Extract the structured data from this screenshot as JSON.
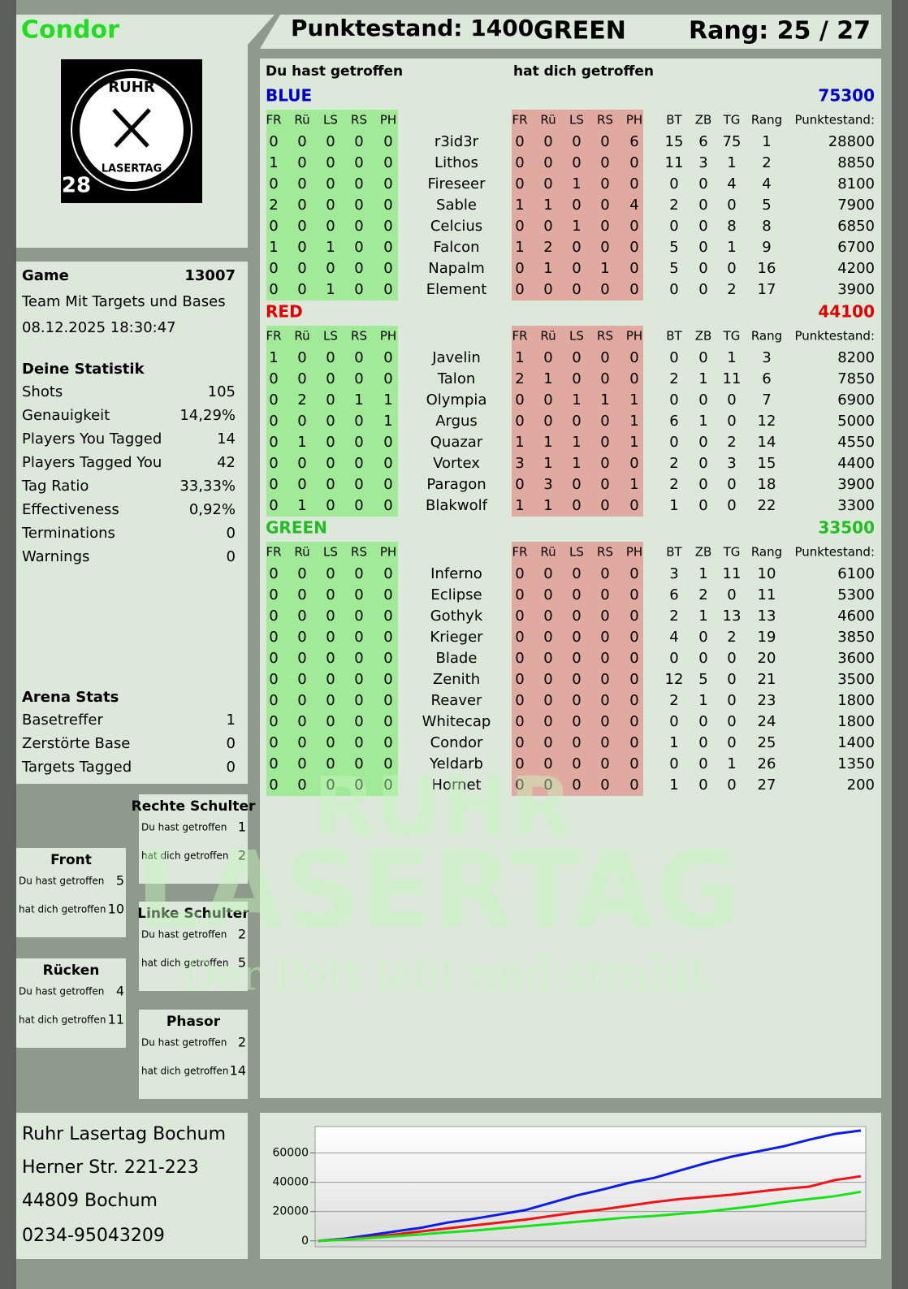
{
  "header": {
    "player": "Condor",
    "score": "Punktestand: 1400",
    "team": "GREEN",
    "rank": "Rang: 25 / 27"
  },
  "logo": {
    "top": "RUHR",
    "bottom": "LASERTAG",
    "number": "28"
  },
  "game": {
    "label": "Game",
    "id": 13007,
    "mode": "Team Mit Targets und Bases",
    "date": "08.12.2025 18:30:47"
  },
  "stats": {
    "title": "Deine Statistik",
    "rows": [
      [
        "Shots",
        105
      ],
      [
        "Genauigkeit",
        "14,29%"
      ],
      [
        "Players You Tagged",
        14
      ],
      [
        "Players Tagged You",
        42
      ],
      [
        "Tag Ratio",
        "33,33%"
      ],
      [
        "Effectiveness",
        "0,92%"
      ],
      [
        "Terminations",
        0
      ],
      [
        "Warnings",
        0
      ]
    ]
  },
  "arena": {
    "title": "Arena Stats",
    "rows": [
      [
        "Basetreffer",
        1
      ],
      [
        "Zerstörte Base",
        0
      ],
      [
        "Targets Tagged",
        0
      ]
    ]
  },
  "zones": [
    {
      "name": "Rechte Schulter",
      "rows": [
        [
          "Du hast getroffen",
          1
        ],
        [
          "hat dich getroffen",
          2
        ]
      ]
    },
    {
      "name": "Front",
      "rows": [
        [
          "Du hast getroffen",
          5
        ],
        [
          "hat dich getroffen",
          10
        ]
      ]
    },
    {
      "name": "Linke Schulter",
      "rows": [
        [
          "Du hast getroffen",
          2
        ],
        [
          "hat dich getroffen",
          5
        ]
      ]
    },
    {
      "name": "Rücken",
      "rows": [
        [
          "Du hast getroffen",
          4
        ],
        [
          "hat dich getroffen",
          11
        ]
      ]
    },
    {
      "name": "Phasor",
      "rows": [
        [
          "Du hast getroffen",
          2
        ],
        [
          "hat dich getroffen",
          14
        ]
      ]
    }
  ],
  "table": {
    "left_header": "Du hast getroffen",
    "right_header": "hat dich getroffen",
    "hit_columns": [
      "FR",
      "Rü",
      "LS",
      "RS",
      "PH"
    ],
    "stat_columns": [
      "BT",
      "ZB",
      "TG",
      "Rang",
      "Punktestand:"
    ],
    "teams": [
      {
        "name": "BLUE",
        "color": "#0000c8",
        "total": 75300,
        "rows": [
          [
            0,
            0,
            0,
            0,
            0,
            "r3id3r",
            0,
            0,
            0,
            0,
            6,
            15,
            6,
            75,
            1,
            28800
          ],
          [
            1,
            0,
            0,
            0,
            0,
            "Lithos",
            0,
            0,
            0,
            0,
            0,
            11,
            3,
            1,
            2,
            8850
          ],
          [
            0,
            0,
            0,
            0,
            0,
            "Fireseer",
            0,
            0,
            1,
            0,
            0,
            0,
            0,
            4,
            4,
            8100
          ],
          [
            2,
            0,
            0,
            0,
            0,
            "Sable",
            1,
            1,
            0,
            0,
            4,
            2,
            0,
            0,
            5,
            7900
          ],
          [
            0,
            0,
            0,
            0,
            0,
            "Celcius",
            0,
            0,
            1,
            0,
            0,
            0,
            0,
            8,
            8,
            6850
          ],
          [
            1,
            0,
            1,
            0,
            0,
            "Falcon",
            1,
            2,
            0,
            0,
            0,
            5,
            0,
            1,
            9,
            6700
          ],
          [
            0,
            0,
            0,
            0,
            0,
            "Napalm",
            0,
            1,
            0,
            1,
            0,
            5,
            0,
            0,
            16,
            4200
          ],
          [
            0,
            0,
            1,
            0,
            0,
            "Element",
            0,
            0,
            0,
            0,
            0,
            0,
            0,
            2,
            17,
            3900
          ]
        ]
      },
      {
        "name": "RED",
        "color": "#e00000",
        "total": 44100,
        "rows": [
          [
            1,
            0,
            0,
            0,
            0,
            "Javelin",
            1,
            0,
            0,
            0,
            0,
            0,
            0,
            1,
            3,
            8200
          ],
          [
            0,
            0,
            0,
            0,
            0,
            "Talon",
            2,
            1,
            0,
            0,
            0,
            2,
            1,
            11,
            6,
            7850
          ],
          [
            0,
            2,
            0,
            1,
            1,
            "Olympia",
            0,
            0,
            1,
            1,
            1,
            0,
            0,
            0,
            7,
            6900
          ],
          [
            0,
            0,
            0,
            0,
            1,
            "Argus",
            0,
            0,
            0,
            0,
            1,
            6,
            1,
            0,
            12,
            5000
          ],
          [
            0,
            1,
            0,
            0,
            0,
            "Quazar",
            1,
            1,
            1,
            0,
            1,
            0,
            0,
            2,
            14,
            4550
          ],
          [
            0,
            0,
            0,
            0,
            0,
            "Vortex",
            3,
            1,
            1,
            0,
            0,
            2,
            0,
            3,
            15,
            4400
          ],
          [
            0,
            0,
            0,
            0,
            0,
            "Paragon",
            0,
            3,
            0,
            0,
            1,
            2,
            0,
            0,
            18,
            3900
          ],
          [
            0,
            1,
            0,
            0,
            0,
            "Blakwolf",
            1,
            1,
            0,
            0,
            0,
            1,
            0,
            0,
            22,
            3300
          ]
        ]
      },
      {
        "name": "GREEN",
        "color": "#1fbf1f",
        "total": 33500,
        "rows": [
          [
            0,
            0,
            0,
            0,
            0,
            "Inferno",
            0,
            0,
            0,
            0,
            0,
            3,
            1,
            11,
            10,
            6100
          ],
          [
            0,
            0,
            0,
            0,
            0,
            "Eclipse",
            0,
            0,
            0,
            0,
            0,
            6,
            2,
            0,
            11,
            5300
          ],
          [
            0,
            0,
            0,
            0,
            0,
            "Gothyk",
            0,
            0,
            0,
            0,
            0,
            2,
            1,
            13,
            13,
            4600
          ],
          [
            0,
            0,
            0,
            0,
            0,
            "Krieger",
            0,
            0,
            0,
            0,
            0,
            4,
            0,
            2,
            19,
            3850
          ],
          [
            0,
            0,
            0,
            0,
            0,
            "Blade",
            0,
            0,
            0,
            0,
            0,
            0,
            0,
            0,
            20,
            3600
          ],
          [
            0,
            0,
            0,
            0,
            0,
            "Zenith",
            0,
            0,
            0,
            0,
            0,
            12,
            5,
            0,
            21,
            3500
          ],
          [
            0,
            0,
            0,
            0,
            0,
            "Reaver",
            0,
            0,
            0,
            0,
            0,
            2,
            1,
            0,
            23,
            1800
          ],
          [
            0,
            0,
            0,
            0,
            0,
            "Whitecap",
            0,
            0,
            0,
            0,
            0,
            0,
            0,
            0,
            24,
            1800
          ],
          [
            0,
            0,
            0,
            0,
            0,
            "Condor",
            0,
            0,
            0,
            0,
            0,
            1,
            0,
            0,
            25,
            1400
          ],
          [
            0,
            0,
            0,
            0,
            0,
            "Yeldarb",
            0,
            0,
            0,
            0,
            0,
            0,
            0,
            1,
            26,
            1350
          ],
          [
            0,
            0,
            0,
            0,
            0,
            "Hornet",
            0,
            0,
            0,
            0,
            0,
            1,
            0,
            0,
            27,
            200
          ]
        ]
      }
    ]
  },
  "watermark": {
    "line1": "RUHR",
    "line2": "LASERTAG",
    "line3": "Der Pott lebt und strahlt"
  },
  "address": [
    "Ruhr Lasertag Bochum",
    "Herner Str. 221-223",
    "44809 Bochum",
    "0234-95043209"
  ],
  "chart_data": {
    "type": "line",
    "ylim": [
      -4000,
      78000
    ],
    "yticks": [
      0,
      20000,
      40000,
      60000
    ],
    "grid": true,
    "series": [
      {
        "name": "BLUE",
        "color": "#0a1ee6",
        "values": [
          0,
          1500,
          4000,
          6500,
          9000,
          12500,
          15000,
          18000,
          21000,
          26000,
          31000,
          35000,
          39500,
          43000,
          48000,
          53000,
          57500,
          61000,
          64500,
          69000,
          73000,
          75300
        ]
      },
      {
        "name": "RED",
        "color": "#f01414",
        "values": [
          0,
          1000,
          2500,
          4500,
          6500,
          8500,
          10500,
          12500,
          14500,
          17000,
          19500,
          21500,
          24000,
          26500,
          28500,
          30000,
          31500,
          33500,
          35500,
          37000,
          41500,
          44100
        ]
      },
      {
        "name": "GREEN",
        "color": "#14e614",
        "values": [
          0,
          800,
          2000,
          3200,
          4500,
          5800,
          7000,
          8500,
          10000,
          11500,
          13000,
          14500,
          16000,
          17000,
          18500,
          20000,
          22000,
          24000,
          26500,
          28500,
          30500,
          33500
        ]
      }
    ]
  }
}
